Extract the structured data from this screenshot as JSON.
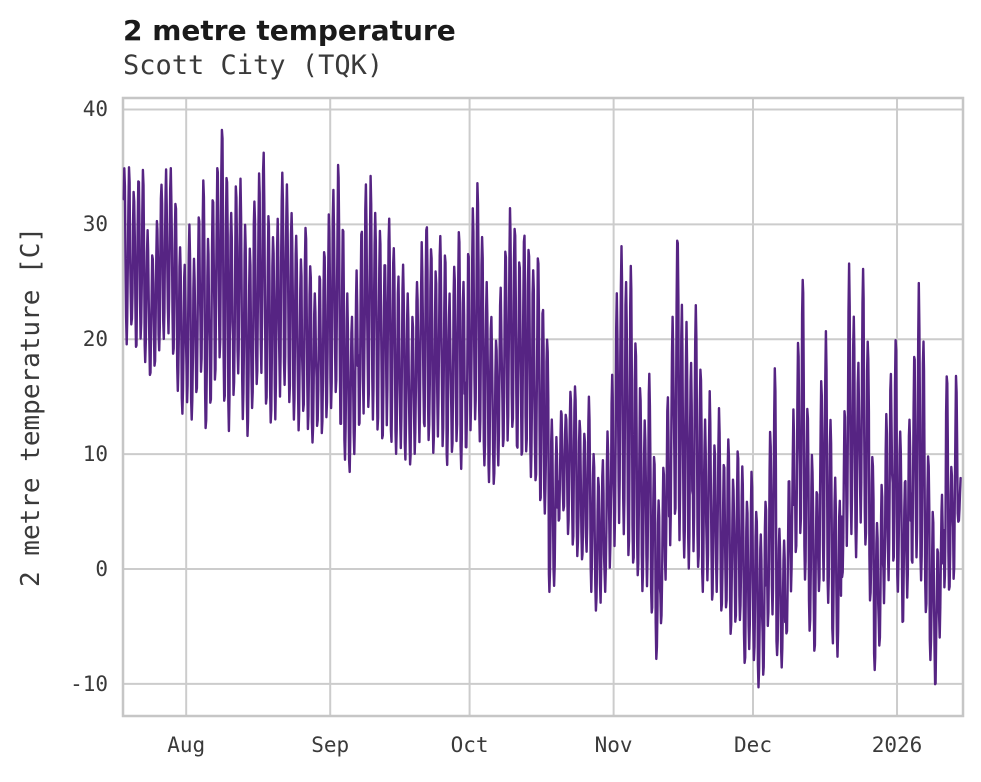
{
  "header": {
    "title": "2 metre temperature",
    "subtitle": "Scott City (TQK)"
  },
  "chart_data": {
    "type": "line",
    "title": "2 metre temperature",
    "subtitle": "Scott City (TQK)",
    "xlabel": "",
    "ylabel": "2 metre temperature [C]",
    "grid": true,
    "legend": null,
    "ylim": [
      -12.8,
      41.0
    ],
    "yticks": [
      40,
      30,
      20,
      10,
      0,
      -10
    ],
    "xtick_labels": [
      "Aug",
      "Sep",
      "Oct",
      "Nov",
      "Dec",
      "2026"
    ],
    "xtick_day_offsets": [
      14,
      45,
      75,
      106,
      136,
      167
    ],
    "xlim_days": [
      0.4,
      181.2
    ],
    "x_range_note": "hourly series from mid-July 2025 to mid-January 2026; day 0 = Jul 18 2025",
    "series": [
      {
        "name": "2 metre temperature",
        "unit": "C",
        "encoding": "per-day [date, daily_min, daily_max] envelope read from the plot; line oscillates diurnally between min and max",
        "days": [
          [
            "07-18",
            20.0,
            34.9
          ],
          [
            "07-19",
            19.5,
            35.0
          ],
          [
            "07-20",
            21.0,
            33.0
          ],
          [
            "07-21",
            19.0,
            34.5
          ],
          [
            "07-22",
            20.0,
            34.8
          ],
          [
            "07-23",
            18.0,
            29.5
          ],
          [
            "07-24",
            16.5,
            27.5
          ],
          [
            "07-25",
            17.5,
            30.5
          ],
          [
            "07-26",
            19.0,
            33.5
          ],
          [
            "07-27",
            20.0,
            34.8
          ],
          [
            "07-28",
            20.5,
            34.9
          ],
          [
            "07-29",
            18.5,
            32.0
          ],
          [
            "07-30",
            15.5,
            28.0
          ],
          [
            "07-31",
            13.5,
            26.5
          ],
          [
            "08-01",
            14.5,
            30.0
          ],
          [
            "08-02",
            13.0,
            27.0
          ],
          [
            "08-03",
            15.0,
            31.0
          ],
          [
            "08-04",
            17.0,
            34.0
          ],
          [
            "08-05",
            12.0,
            29.0
          ],
          [
            "08-06",
            14.0,
            32.5
          ],
          [
            "08-07",
            16.0,
            35.5
          ],
          [
            "08-08",
            18.0,
            38.5
          ],
          [
            "08-09",
            14.0,
            34.5
          ],
          [
            "08-10",
            12.0,
            31.0
          ],
          [
            "08-11",
            15.0,
            33.5
          ],
          [
            "08-12",
            17.0,
            34.0
          ],
          [
            "08-13",
            13.0,
            30.0
          ],
          [
            "08-14",
            11.5,
            28.0
          ],
          [
            "08-15",
            14.0,
            32.0
          ],
          [
            "08-16",
            16.0,
            34.5
          ],
          [
            "08-17",
            17.0,
            36.3
          ],
          [
            "08-18",
            14.0,
            31.0
          ],
          [
            "08-19",
            12.5,
            29.0
          ],
          [
            "08-20",
            13.0,
            30.5
          ],
          [
            "08-21",
            15.0,
            34.5
          ],
          [
            "08-22",
            16.0,
            33.5
          ],
          [
            "08-23",
            14.5,
            31.0
          ],
          [
            "08-24",
            13.0,
            29.0
          ],
          [
            "08-25",
            12.0,
            27.0
          ],
          [
            "08-26",
            13.5,
            30.0
          ],
          [
            "08-27",
            12.0,
            26.5
          ],
          [
            "08-28",
            11.0,
            24.0
          ],
          [
            "08-29",
            12.0,
            26.0
          ],
          [
            "08-30",
            11.5,
            28.0
          ],
          [
            "08-31",
            13.0,
            31.0
          ],
          [
            "09-01",
            14.0,
            33.0
          ],
          [
            "09-02",
            15.0,
            35.4
          ],
          [
            "09-03",
            12.0,
            30.0
          ],
          [
            "09-04",
            9.5,
            24.0
          ],
          [
            "09-05",
            8.4,
            22.0
          ],
          [
            "09-06",
            10.0,
            26.0
          ],
          [
            "09-07",
            12.0,
            30.0
          ],
          [
            "09-08",
            13.5,
            33.5
          ],
          [
            "09-09",
            14.0,
            34.3
          ],
          [
            "09-10",
            13.0,
            31.0
          ],
          [
            "09-11",
            12.0,
            29.5
          ],
          [
            "09-12",
            11.0,
            27.0
          ],
          [
            "09-13",
            12.5,
            30.5
          ],
          [
            "09-14",
            11.0,
            28.0
          ],
          [
            "09-15",
            10.0,
            25.5
          ],
          [
            "09-16",
            10.5,
            26.5
          ],
          [
            "09-17",
            9.5,
            24.0
          ],
          [
            "09-18",
            9.0,
            22.0
          ],
          [
            "09-19",
            10.0,
            25.0
          ],
          [
            "09-20",
            11.0,
            28.5
          ],
          [
            "09-21",
            12.0,
            30.5
          ],
          [
            "09-22",
            11.0,
            28.0
          ],
          [
            "09-23",
            10.0,
            26.0
          ],
          [
            "09-24",
            11.5,
            29.0
          ],
          [
            "09-25",
            10.5,
            27.5
          ],
          [
            "09-26",
            9.0,
            24.0
          ],
          [
            "09-27",
            10.0,
            26.5
          ],
          [
            "09-28",
            11.0,
            29.5
          ],
          [
            "09-29",
            8.7,
            25.0
          ],
          [
            "09-30",
            10.0,
            28.0
          ],
          [
            "10-01",
            12.0,
            31.5
          ],
          [
            "10-02",
            13.0,
            33.6
          ],
          [
            "10-03",
            11.0,
            29.0
          ],
          [
            "10-04",
            9.0,
            25.0
          ],
          [
            "10-05",
            7.5,
            22.0
          ],
          [
            "10-06",
            7.3,
            20.0
          ],
          [
            "10-07",
            9.0,
            24.5
          ],
          [
            "10-08",
            10.5,
            28.0
          ],
          [
            "10-09",
            11.0,
            31.5
          ],
          [
            "10-10",
            12.0,
            30.0
          ],
          [
            "10-11",
            10.0,
            27.0
          ],
          [
            "10-12",
            9.5,
            29.5
          ],
          [
            "10-13",
            10.0,
            28.0
          ],
          [
            "10-14",
            8.0,
            26.0
          ],
          [
            "10-15",
            7.0,
            27.5
          ],
          [
            "10-16",
            5.5,
            23.0
          ],
          [
            "10-17",
            4.8,
            20.0
          ],
          [
            "10-18",
            -2.0,
            13.0
          ],
          [
            "10-19",
            -1.5,
            11.5
          ],
          [
            "10-20",
            4.0,
            14.0
          ],
          [
            "10-21",
            5.0,
            13.5
          ],
          [
            "10-22",
            3.0,
            15.5
          ],
          [
            "10-23",
            2.0,
            16.0
          ],
          [
            "10-24",
            1.0,
            13.0
          ],
          [
            "10-25",
            0.7,
            12.0
          ],
          [
            "10-26",
            1.5,
            15.0
          ],
          [
            "10-27",
            -2.0,
            10.0
          ],
          [
            "10-28",
            -3.7,
            8.0
          ],
          [
            "10-29",
            -3.0,
            9.5
          ],
          [
            "10-30",
            -2.0,
            12.0
          ],
          [
            "10-31",
            0.0,
            17.0
          ],
          [
            "11-01",
            2.0,
            24.0
          ],
          [
            "11-02",
            4.0,
            28.1
          ],
          [
            "11-03",
            3.0,
            25.0
          ],
          [
            "11-04",
            1.0,
            26.5
          ],
          [
            "11-05",
            0.0,
            20.0
          ],
          [
            "11-06",
            -1.0,
            16.0
          ],
          [
            "11-07",
            -2.0,
            13.0
          ],
          [
            "11-08",
            -1.5,
            17.0
          ],
          [
            "11-09",
            -4.0,
            10.0
          ],
          [
            "11-10",
            -7.9,
            6.0
          ],
          [
            "11-11",
            -5.0,
            9.0
          ],
          [
            "11-12",
            -1.0,
            15.0
          ],
          [
            "11-13",
            2.0,
            22.0
          ],
          [
            "11-14",
            4.0,
            29.2
          ],
          [
            "11-15",
            2.5,
            23.0
          ],
          [
            "11-16",
            1.0,
            21.5
          ],
          [
            "11-17",
            0.0,
            18.0
          ],
          [
            "11-18",
            1.5,
            23.0
          ],
          [
            "11-19",
            0.0,
            17.5
          ],
          [
            "11-20",
            -2.0,
            13.0
          ],
          [
            "11-21",
            -1.0,
            15.5
          ],
          [
            "11-22",
            -3.0,
            11.0
          ],
          [
            "11-23",
            -2.0,
            14.0
          ],
          [
            "11-24",
            -4.0,
            9.5
          ],
          [
            "11-25",
            -3.5,
            11.5
          ],
          [
            "11-26",
            -6.0,
            8.0
          ],
          [
            "11-27",
            -5.0,
            10.5
          ],
          [
            "11-28",
            -4.5,
            9.0
          ],
          [
            "11-29",
            -8.4,
            6.0
          ],
          [
            "11-30",
            -7.0,
            8.5
          ],
          [
            "12-01",
            -8.0,
            5.0
          ],
          [
            "12-02",
            -10.3,
            3.0
          ],
          [
            "12-03",
            -9.5,
            6.0
          ],
          [
            "12-04",
            -5.0,
            12.0
          ],
          [
            "12-05",
            -4.0,
            17.5
          ],
          [
            "12-06",
            -7.5,
            3.5
          ],
          [
            "12-07",
            -8.6,
            2.5
          ],
          [
            "12-08",
            -6.0,
            8.0
          ],
          [
            "12-09",
            -2.0,
            14.0
          ],
          [
            "12-10",
            1.0,
            20.0
          ],
          [
            "12-11",
            3.0,
            25.3
          ],
          [
            "12-12",
            -1.0,
            14.0
          ],
          [
            "12-13",
            -5.5,
            10.0
          ],
          [
            "12-14",
            -7.4,
            7.0
          ],
          [
            "12-15",
            -2.0,
            16.5
          ],
          [
            "12-16",
            -1.0,
            20.7
          ],
          [
            "12-17",
            -3.0,
            13.0
          ],
          [
            "12-18",
            -6.5,
            8.0
          ],
          [
            "12-19",
            -7.7,
            6.0
          ],
          [
            "12-20",
            -1.0,
            14.0
          ],
          [
            "12-21",
            2.0,
            26.6
          ],
          [
            "12-22",
            3.0,
            22.0
          ],
          [
            "12-23",
            1.0,
            18.0
          ],
          [
            "12-24",
            4.0,
            26.2
          ],
          [
            "12-25",
            2.0,
            20.0
          ],
          [
            "12-26",
            -3.0,
            10.0
          ],
          [
            "12-27",
            -8.8,
            4.0
          ],
          [
            "12-28",
            -6.9,
            7.5
          ],
          [
            "12-29",
            -3.0,
            13.5
          ],
          [
            "12-30",
            -1.0,
            17.0
          ],
          [
            "12-31",
            0.0,
            20.3
          ],
          [
            "01-01",
            -2.0,
            12.0
          ],
          [
            "01-02",
            -5.0,
            8.0
          ],
          [
            "01-03",
            -2.5,
            13.0
          ],
          [
            "01-04",
            0.0,
            19.0
          ],
          [
            "01-05",
            1.0,
            24.9
          ],
          [
            "01-06",
            -1.0,
            19.8
          ],
          [
            "01-07",
            -4.0,
            10.0
          ],
          [
            "01-08",
            -8.0,
            5.0
          ],
          [
            "01-09",
            -10.5,
            2.0
          ],
          [
            "01-10",
            -6.0,
            6.5
          ],
          [
            "01-11",
            -2.0,
            17.1
          ],
          [
            "01-12",
            -2.0,
            9.0
          ],
          [
            "01-13",
            -1.0,
            17.1
          ],
          [
            "01-14",
            4.0,
            8.0
          ]
        ]
      }
    ]
  },
  "colors": {
    "line": "#562483",
    "grid": "#cccccc",
    "spine": "#c6c6c6",
    "tick_text": "#3a3a3a",
    "title_text": "#1a1a1a",
    "background": "#ffffff"
  }
}
